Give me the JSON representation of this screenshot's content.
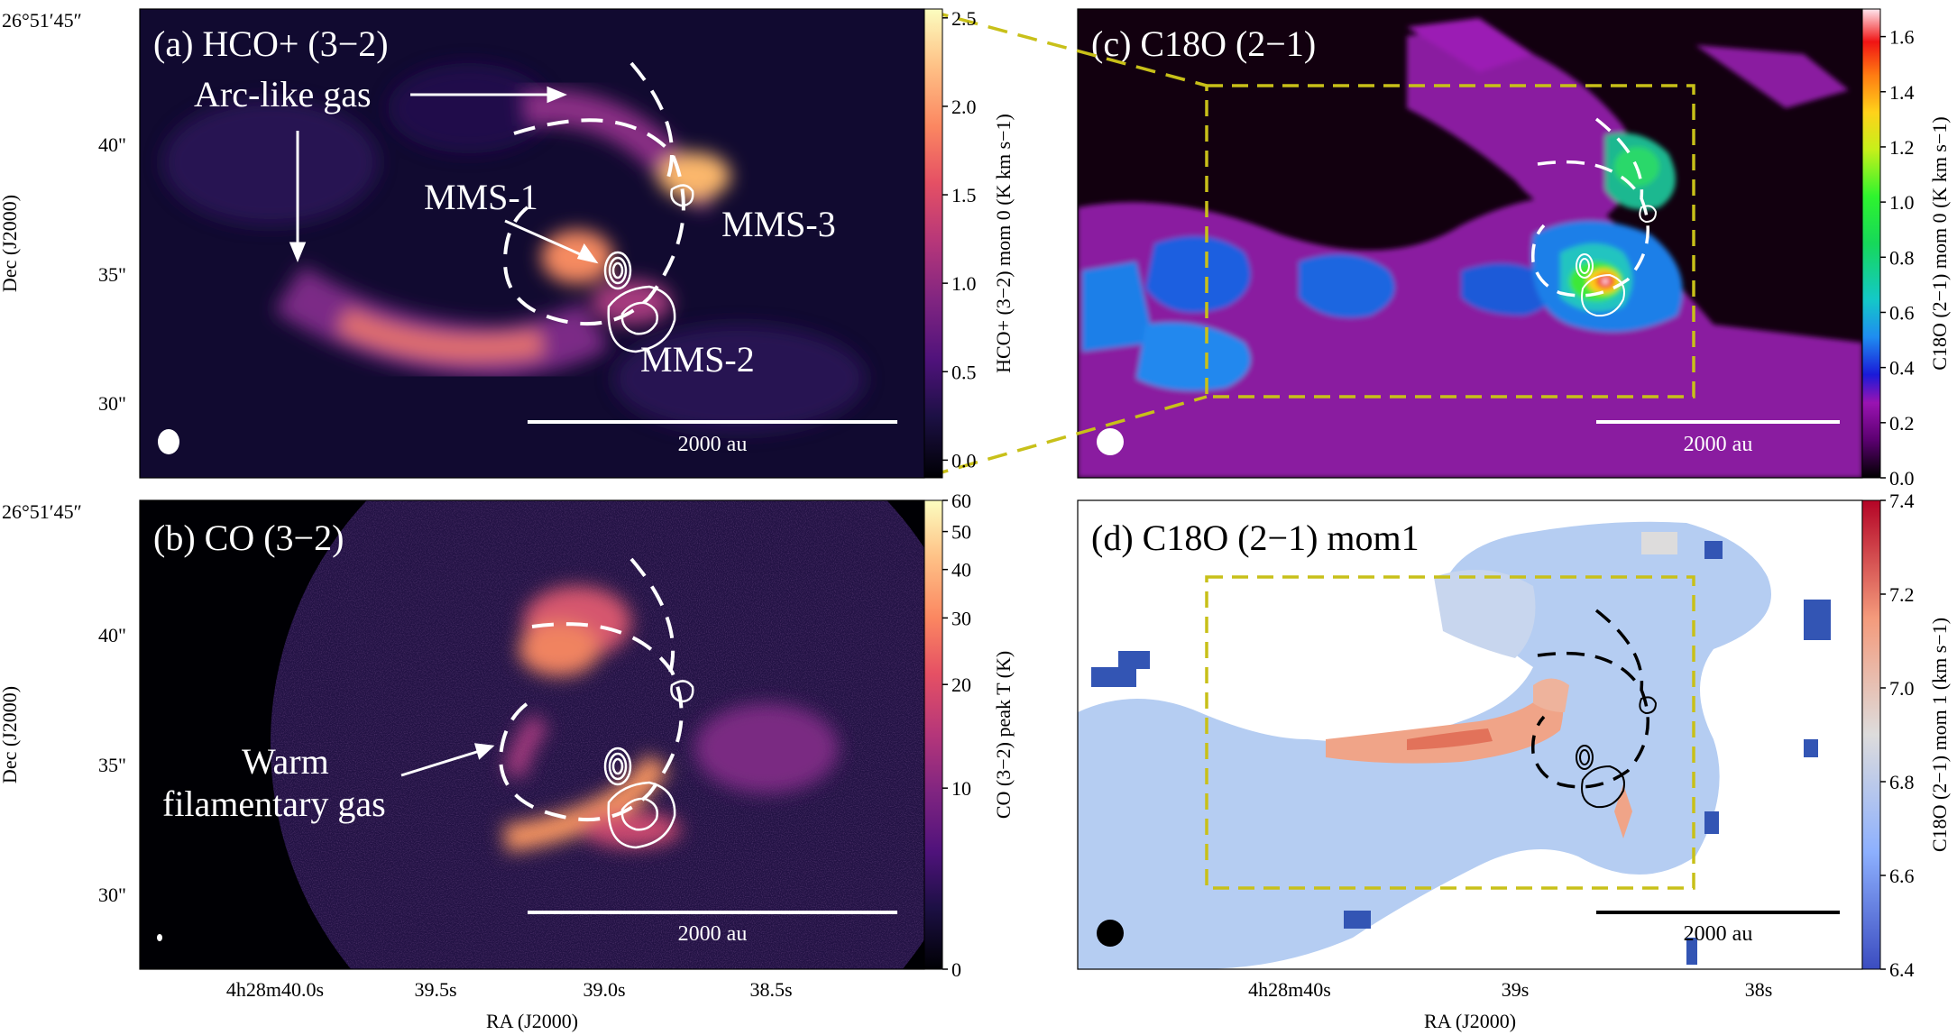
{
  "figure": {
    "ra_axis_label": "RA (J2000)",
    "dec_axis_label": "Dec (J2000)"
  },
  "dec_ticks": {
    "first": "26°51′45″",
    "labels": [
      "40\"",
      "35\"",
      "30\""
    ]
  },
  "ra_ticks_left": [
    "4h28m40.0s",
    "39.5s",
    "39.0s",
    "38.5s"
  ],
  "ra_ticks_right": [
    "4h28m40s",
    "39s",
    "38s"
  ],
  "panels": {
    "a": {
      "title": "(a) HCO+ (3−2)",
      "annotations": [
        "Arc-like gas",
        "MMS-1",
        "MMS-3",
        "MMS-2"
      ],
      "scalebar": "2000 au",
      "colorbar": {
        "label": "HCO+ (3−2) mom 0 (K km s−1)",
        "ticks": [
          "2.5",
          "2.0",
          "1.5",
          "1.0",
          "0.5",
          "0.0"
        ],
        "colormap": "magma",
        "range": [
          -0.1,
          2.55
        ]
      }
    },
    "b": {
      "title": "(b) CO (3−2)",
      "annotations": [
        "Warm",
        "filamentary gas"
      ],
      "scalebar": "2000 au",
      "colorbar": {
        "label": "CO (3−2) peak T (K)",
        "ticks": [
          "60",
          "50",
          "40",
          "30",
          "20",
          "10",
          "0"
        ],
        "colormap": "magma",
        "range": [
          0,
          60
        ]
      }
    },
    "c": {
      "title": "(c) C18O (2−1)",
      "scalebar": "2000 au",
      "colorbar": {
        "label": "C18O (2−1) mom 0 (K km s−1)",
        "ticks": [
          "1.6",
          "1.4",
          "1.2",
          "1.0",
          "0.8",
          "0.6",
          "0.4",
          "0.2",
          "0.0"
        ],
        "colormap": "gist_ncar-like",
        "range": [
          0.0,
          1.7
        ]
      }
    },
    "d": {
      "title": "(d) C18O (2−1) mom1",
      "scalebar": "2000 au",
      "colorbar": {
        "label": "C18O (2−1) mom 1 (km s−1)",
        "ticks": [
          "7.4",
          "7.2",
          "7.0",
          "6.8",
          "6.6",
          "6.4"
        ],
        "colormap": "coolwarm",
        "range": [
          6.4,
          7.4
        ]
      }
    }
  },
  "colors": {
    "zoom_box": "#c8c019",
    "magma_dark": "#0d0829",
    "magma_bright": "#fcfdbf"
  }
}
